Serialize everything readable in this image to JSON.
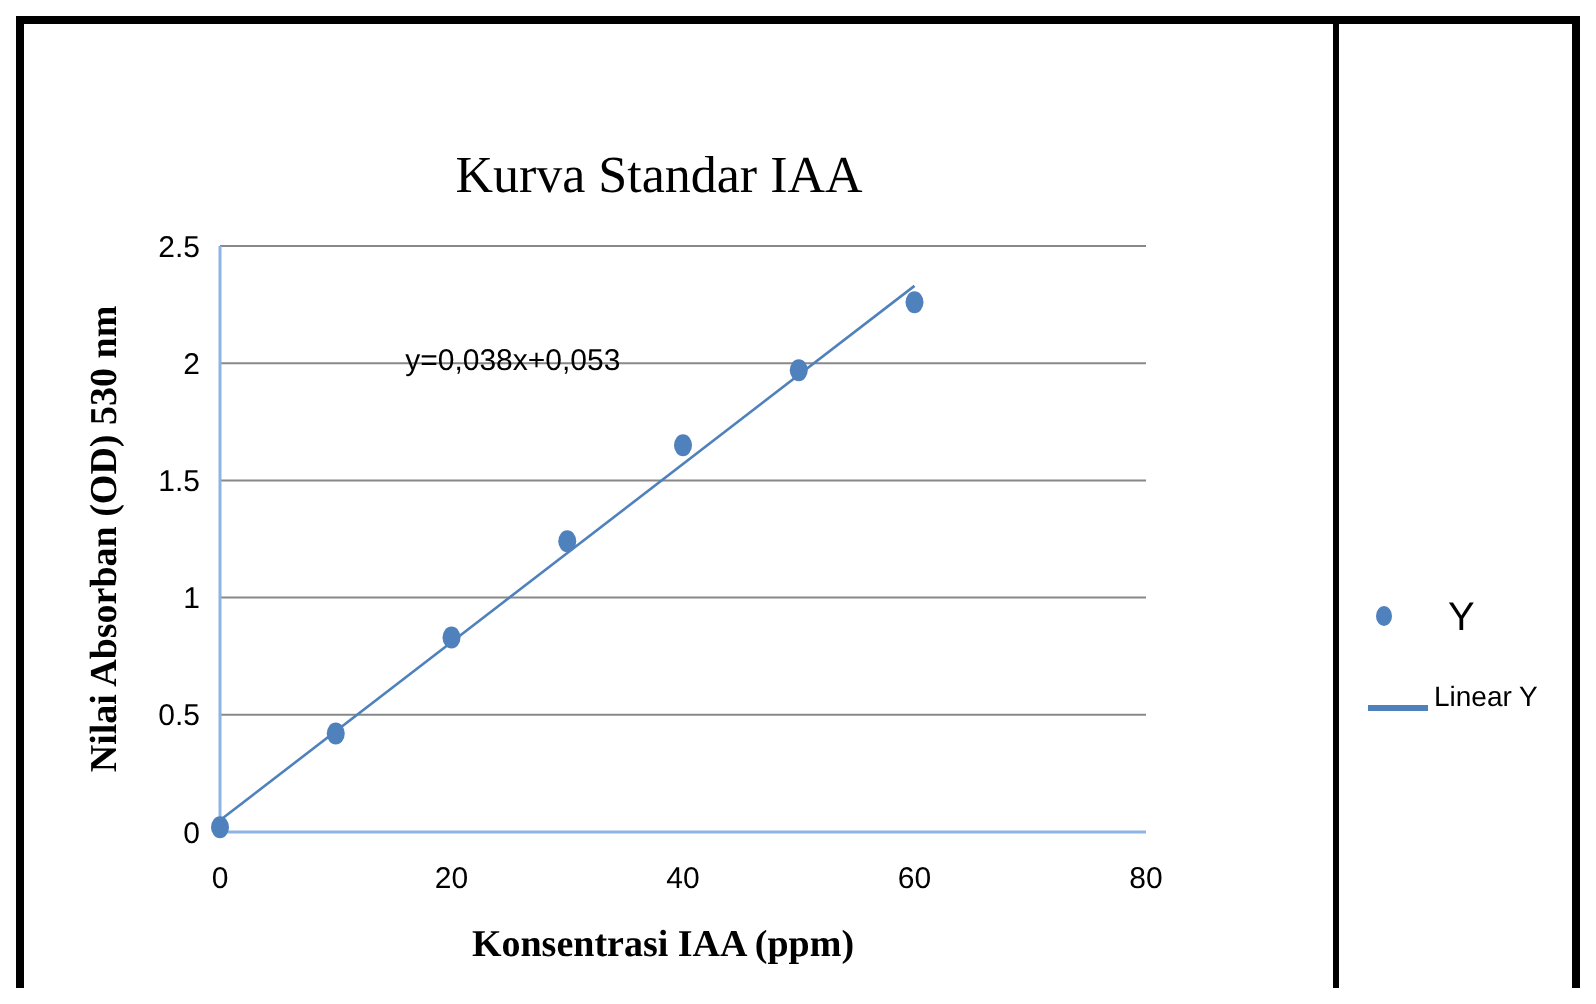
{
  "chart_data": {
    "type": "scatter",
    "title": "Kurva Standar IAA",
    "xlabel": "Konsentrasi IAA (ppm)",
    "ylabel": "Nilai Absorban (OD) 530 nm",
    "series": [
      {
        "name": "Y",
        "color": "#4f81bd",
        "x": [
          0,
          10,
          20,
          30,
          40,
          50,
          60
        ],
        "values": [
          0.02,
          0.42,
          0.83,
          1.24,
          1.65,
          1.97,
          2.26
        ],
        "marker": "circle"
      },
      {
        "name": "Linear Y",
        "type": "line",
        "color": "#4f81bd",
        "x": [
          0,
          60
        ],
        "values": [
          0.05,
          2.33
        ],
        "line_style": "solid"
      }
    ],
    "xlim": [
      0,
      80
    ],
    "xticks": [
      0,
      20,
      40,
      60,
      80
    ],
    "ylim": [
      0,
      2.5
    ],
    "yticks": [
      0,
      0.5,
      1,
      1.5,
      2,
      2.5
    ],
    "grid": "y",
    "legend": "right",
    "annotations": [
      "y=0,038x+0,053"
    ]
  }
}
